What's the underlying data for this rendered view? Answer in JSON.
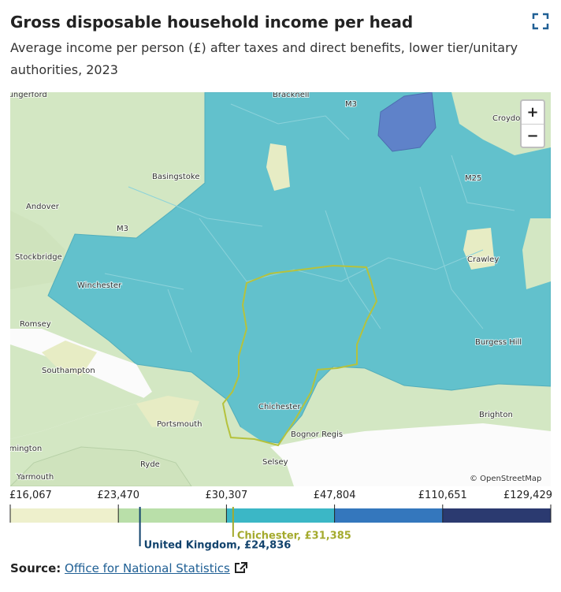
{
  "header": {
    "title": "Gross disposable household income per head",
    "subtitle": "Average income per person (£) after taxes and direct benefits, lower tier/unitary authorities, 2023"
  },
  "map": {
    "places": [
      "Hungerford",
      "Bracknell",
      "M3",
      "Croydon",
      "Basingstoke",
      "Andover",
      "M3",
      "M25",
      "Stockbridge",
      "Crawley",
      "Winchester",
      "Romsey",
      "Burgess Hill",
      "Southampton",
      "Chichester",
      "Brighton",
      "Portsmouth",
      "Bognor Regis",
      "Lymington",
      "Ryde",
      "Selsey",
      "Yarmouth"
    ],
    "attribution": "© OpenStreetMap"
  },
  "legend": {
    "breaks": [
      {
        "value": 16067,
        "label": "£16,067"
      },
      {
        "value": 23470,
        "label": "£23,470"
      },
      {
        "value": 30307,
        "label": "£30,307"
      },
      {
        "value": 47804,
        "label": "£47,804"
      },
      {
        "value": 110651,
        "label": "£110,651"
      },
      {
        "value": 129429,
        "label": "£129,429"
      }
    ],
    "colors": [
      "#eef0cc",
      "#b9dfa9",
      "#3bb7c6",
      "#3477bd",
      "#2b3a70"
    ],
    "markers": [
      {
        "value": 24836,
        "label": "United Kingdom, £24,836",
        "color": "#12436d"
      },
      {
        "value": 31385,
        "label": "Chichester, £31,385",
        "color": "#a4aa2d"
      }
    ]
  },
  "source": {
    "label": "Source:",
    "link": "Office for National Statistics"
  }
}
